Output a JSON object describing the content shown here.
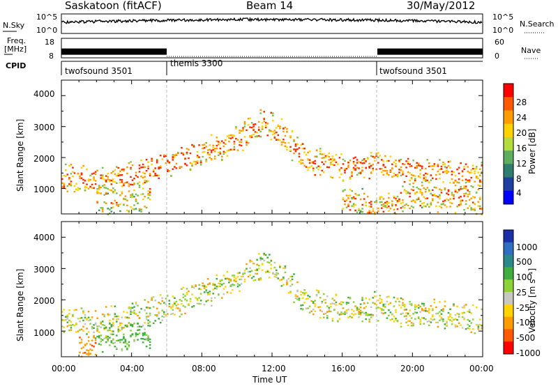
{
  "header": {
    "station": "Saskatoon (fitACF)",
    "beam": "Beam 14",
    "date": "30/May/2012"
  },
  "noise_panel": {
    "left_label": "N.Sky",
    "right_label": "N.Search",
    "left_ticks": [
      "10^5",
      "10^0"
    ],
    "right_ticks": [
      "10^5",
      "10^0"
    ]
  },
  "freq_panel": {
    "left_label_top": "Freq.",
    "left_label_unit": "[MHz]",
    "right_label": "Nave",
    "left_ticks": [
      "18",
      "8"
    ],
    "right_ticks": [
      "60",
      "0"
    ]
  },
  "cpid_panel": {
    "label": "CPID",
    "segments": [
      {
        "name": "twofsound 3501",
        "start_hour": 0
      },
      {
        "name": "themis 3300",
        "start_hour": 6
      },
      {
        "name": "twofsound 3501",
        "start_hour": 18
      }
    ]
  },
  "power_panel": {
    "ylabel": "Slant Range [km]",
    "yticks": [
      "4000",
      "3000",
      "2000",
      "1000"
    ],
    "colorbar_label": "Power [dB]",
    "colorbar_ticks": [
      "28",
      "24",
      "20",
      "16",
      "12",
      "8",
      "4"
    ],
    "colorbar_colors": [
      "#ff0000",
      "#ff5a00",
      "#ff9c00",
      "#ffd200",
      "#b4dc3c",
      "#5fae5f",
      "#2e7d6e",
      "#1f3fa0",
      "#0000ff"
    ]
  },
  "velocity_panel": {
    "ylabel": "Slant Range [km]",
    "yticks": [
      "4000",
      "3000",
      "2000",
      "1000"
    ],
    "colorbar_label": "Velocity [m s⁻¹]",
    "colorbar_ticks": [
      "1000",
      "500",
      "100",
      "25",
      "-25",
      "-100",
      "-500",
      "-1000"
    ],
    "colorbar_colors": [
      "#1a2fa8",
      "#2f6ec0",
      "#2a8a8a",
      "#3fae3f",
      "#8ed23a",
      "#c8c8c0",
      "#ffd400",
      "#ff9c00",
      "#ff5a00",
      "#ff0000"
    ]
  },
  "xaxis": {
    "ticks": [
      "00:00",
      "04:00",
      "08:00",
      "12:00",
      "16:00",
      "20:00",
      "00:00"
    ],
    "label": "Time UT"
  },
  "chart_data": [
    {
      "type": "heatmap",
      "title": "Power",
      "xlabel": "Time UT",
      "ylabel": "Slant Range [km]",
      "xlim": [
        0,
        24
      ],
      "ylim": [
        180,
        4500
      ],
      "colorbar": "Power [dB]",
      "color_range": [
        0,
        30
      ],
      "bands": [
        {
          "x": [
            0,
            2,
            4,
            6,
            8,
            10,
            11.5,
            12.5,
            14,
            16,
            18,
            20,
            22,
            24
          ],
          "y": [
            1400,
            1250,
            1500,
            1800,
            2200,
            2600,
            3200,
            2800,
            1900,
            1700,
            1800,
            1600,
            1500,
            1400
          ],
          "power": 24
        },
        {
          "x": [
            16,
            18,
            20,
            24
          ],
          "y": [
            700,
            400,
            800,
            600
          ],
          "power": 22
        },
        {
          "x": [
            2,
            4,
            5
          ],
          "y": [
            700,
            600,
            850
          ],
          "power": 20
        }
      ]
    },
    {
      "type": "heatmap",
      "title": "Velocity",
      "xlabel": "Time UT",
      "ylabel": "Slant Range [km]",
      "xlim": [
        0,
        24
      ],
      "ylim": [
        180,
        4500
      ],
      "colorbar": "Velocity [m s⁻¹]",
      "color_range": [
        -1000,
        1000
      ],
      "bands": [
        {
          "x": [
            0,
            2,
            4,
            6,
            8,
            10,
            11.5,
            12.5,
            14,
            16,
            18,
            20,
            22,
            24
          ],
          "y": [
            1400,
            1250,
            1500,
            1800,
            2200,
            2600,
            3200,
            2800,
            1900,
            1700,
            1800,
            1600,
            1500,
            1400
          ],
          "velocity": 0
        },
        {
          "x": [
            2,
            3,
            4,
            5
          ],
          "y": [
            900,
            800,
            850,
            900
          ],
          "velocity": 150
        },
        {
          "x": [
            1,
            2
          ],
          "y": [
            500,
            600
          ],
          "velocity": -400
        }
      ]
    },
    {
      "type": "line",
      "title": "Frequency",
      "series": [
        {
          "x": [
            0,
            6
          ],
          "y": [
            11,
            11
          ]
        },
        {
          "x": [
            6,
            18
          ],
          "y": [
            8,
            8
          ]
        },
        {
          "x": [
            18,
            24
          ],
          "y": [
            11,
            11
          ]
        }
      ],
      "ylim": [
        8,
        18
      ]
    }
  ]
}
